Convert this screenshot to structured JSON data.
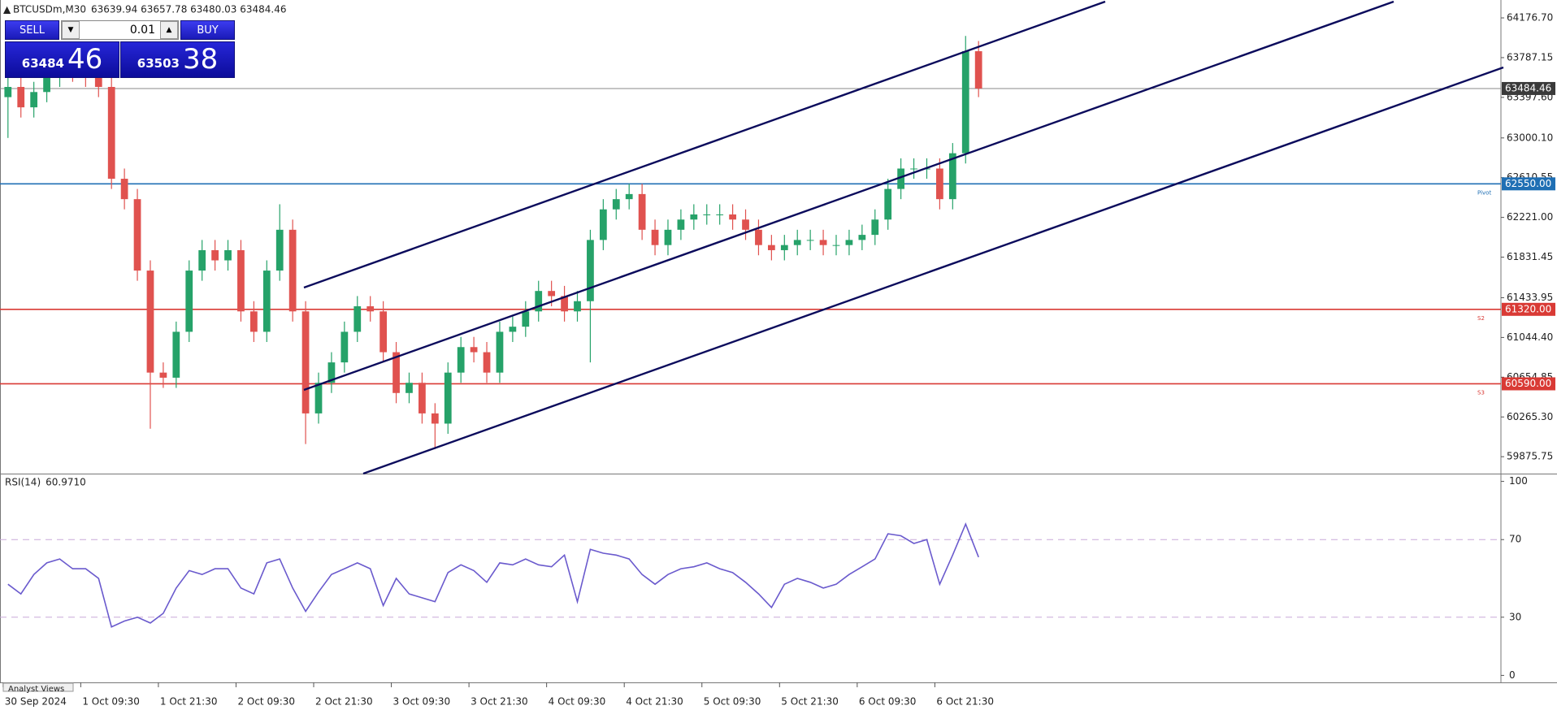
{
  "header": {
    "symbol": "BTCUSDm,M30",
    "quote": "63639.94 63657.78 63480.03 63484.46"
  },
  "trade_panel": {
    "sell": "SELL",
    "buy": "BUY",
    "volume": "0.01",
    "sell_price": {
      "main": "63484",
      "big": "46"
    },
    "buy_price": {
      "main": "63503",
      "big": "38"
    }
  },
  "footer_tab": "Analyst Views",
  "chart_data": [
    {
      "type": "candlestick",
      "categories": [
        "30 Sep 2024",
        null,
        null,
        null,
        null,
        null,
        "1 Oct 09:30",
        null,
        null,
        null,
        null,
        null,
        "1 Oct 21:30",
        null,
        null,
        null,
        null,
        null,
        "2 Oct 09:30",
        null,
        null,
        null,
        null,
        null,
        "2 Oct 21:30",
        null,
        null,
        null,
        null,
        null,
        "3 Oct 09:30",
        null,
        null,
        null,
        null,
        null,
        "3 Oct 21:30",
        null,
        null,
        null,
        null,
        null,
        "4 Oct 09:30",
        null,
        null,
        null,
        null,
        null,
        "4 Oct 21:30",
        null,
        null,
        null,
        null,
        null,
        "5 Oct 09:30",
        null,
        null,
        null,
        null,
        null,
        "5 Oct 21:30",
        null,
        null,
        null,
        null,
        null,
        "6 Oct 09:30",
        null,
        null,
        null,
        null,
        null,
        "6 Oct 21:30",
        null,
        null,
        null
      ],
      "open": [
        63400,
        63500,
        63300,
        63450,
        63600,
        63700,
        63650,
        63600,
        63500,
        62600,
        62400,
        61700,
        60700,
        60650,
        61100,
        61700,
        61900,
        61800,
        61900,
        61300,
        61100,
        61700,
        62100,
        61300,
        60300,
        60600,
        60800,
        61100,
        61350,
        61300,
        60900,
        60500,
        60600,
        60300,
        60200,
        60700,
        60950,
        60900,
        60700,
        61100,
        61150,
        61300,
        61500,
        61450,
        61300,
        61400,
        62000,
        62300,
        62400,
        62450,
        62100,
        61950,
        62100,
        62200,
        62250,
        62250,
        62250,
        62200,
        62100,
        61950,
        61900,
        61950,
        62000,
        62000,
        61950,
        61950,
        62000,
        62050,
        62200,
        62500,
        62700,
        62700,
        62700,
        62400,
        62850,
        63850
      ],
      "high": [
        63600,
        63600,
        63550,
        63700,
        63800,
        63800,
        63750,
        63700,
        63600,
        62700,
        62500,
        61800,
        60800,
        61200,
        61800,
        62000,
        62000,
        62000,
        62000,
        61400,
        61800,
        62350,
        62200,
        61400,
        60700,
        60900,
        61200,
        61450,
        61450,
        61400,
        61000,
        60700,
        60700,
        60400,
        60800,
        61050,
        61050,
        61000,
        61200,
        61250,
        61400,
        61600,
        61600,
        61550,
        61500,
        62100,
        62400,
        62500,
        62550,
        62550,
        62200,
        62200,
        62300,
        62350,
        62350,
        62350,
        62350,
        62300,
        62200,
        62050,
        62050,
        62100,
        62100,
        62100,
        62050,
        62100,
        62150,
        62300,
        62600,
        62800,
        62800,
        62800,
        62800,
        62950,
        64000,
        63950
      ],
      "low": [
        63000,
        63200,
        63200,
        63350,
        63500,
        63550,
        63500,
        63400,
        62500,
        62300,
        61600,
        60150,
        60550,
        60550,
        61000,
        61600,
        61700,
        61700,
        61200,
        61000,
        61000,
        61600,
        61200,
        60000,
        60200,
        60500,
        60700,
        61000,
        61200,
        60800,
        60400,
        60400,
        60200,
        59950,
        60100,
        60600,
        60800,
        60600,
        60600,
        61000,
        61050,
        61200,
        61350,
        61200,
        61200,
        60800,
        61900,
        62200,
        62300,
        62000,
        61850,
        61850,
        62000,
        62100,
        62150,
        62150,
        62100,
        62000,
        61850,
        61800,
        61800,
        61850,
        61900,
        61850,
        61850,
        61850,
        61900,
        61950,
        62100,
        62400,
        62600,
        62600,
        62300,
        62300,
        62750,
        63400
      ],
      "close": [
        63500,
        63300,
        63450,
        63600,
        63700,
        63650,
        63600,
        63500,
        62600,
        62400,
        61700,
        60700,
        60650,
        61100,
        61700,
        61900,
        61800,
        61900,
        61300,
        61100,
        61700,
        62100,
        61300,
        60300,
        60600,
        60800,
        61100,
        61350,
        61300,
        60900,
        60500,
        60600,
        60300,
        60200,
        60700,
        60950,
        60900,
        60700,
        61100,
        61150,
        61300,
        61500,
        61450,
        61300,
        61400,
        62000,
        62300,
        62400,
        62450,
        62100,
        61950,
        62100,
        62200,
        62250,
        62250,
        62250,
        62200,
        62100,
        61950,
        61900,
        61950,
        62000,
        62000,
        61950,
        61950,
        62000,
        62050,
        62200,
        62500,
        62700,
        62700,
        62700,
        62400,
        62850,
        63850,
        63484.46
      ],
      "colors": {
        "up": "#26a269",
        "down": "#e0524f"
      },
      "ylim": [
        59710,
        64352
      ],
      "yticks": [
        {
          "value": 64176.7,
          "label": "64176.70"
        },
        63787.15,
        {
          "value": 63397.6,
          "label": "63397.60"
        },
        {
          "value": 63000.1,
          "label": "63000.10"
        },
        62610.55,
        {
          "value": 62221,
          "label": "62221.00"
        },
        61831.45,
        61433.95,
        {
          "value": 61044.4,
          "label": "61044.40"
        },
        60654.85,
        {
          "value": 60265.3,
          "label": "60265.30"
        },
        59875.75
      ],
      "levels": [
        {
          "value": 63484.46,
          "label": "63484.46",
          "color": "#8a8a8a",
          "tag": "#3a3a3a"
        },
        {
          "value": 62550,
          "label": "62550.00",
          "name": "Pivot",
          "color": "#1f6fb4",
          "tag": "#1f6fb4"
        },
        {
          "value": 61320,
          "label": "61320.00",
          "name": "S2",
          "color": "#d93a35",
          "tag": "#d93a35"
        },
        {
          "value": 60590,
          "label": "60590.00",
          "name": "S3",
          "color": "#d93a35",
          "tag": "#d93a35"
        }
      ]
    },
    {
      "type": "line",
      "series": [
        {
          "name": "RSI(14)",
          "last_label": "60.9710",
          "color": "#6a5acd",
          "values": [
            47,
            42,
            52,
            58,
            60,
            55,
            55,
            50,
            25,
            28,
            30,
            27,
            32,
            45,
            54,
            52,
            55,
            55,
            45,
            42,
            58,
            60,
            45,
            33,
            43,
            52,
            55,
            58,
            55,
            36,
            50,
            42,
            40,
            38,
            53,
            57,
            54,
            48,
            58,
            57,
            60,
            57,
            56,
            62,
            38,
            65,
            63,
            62,
            60,
            52,
            47,
            52,
            55,
            56,
            58,
            55,
            53,
            48,
            42,
            35,
            47,
            50,
            48,
            45,
            47,
            52,
            56,
            60,
            73,
            72,
            68,
            70,
            47,
            62,
            78,
            60.971
          ]
        }
      ],
      "ylim": [
        -3.6,
        103.6
      ],
      "yticks": [
        0,
        30,
        70,
        100
      ],
      "dashed_levels": [
        30,
        70
      ]
    }
  ]
}
